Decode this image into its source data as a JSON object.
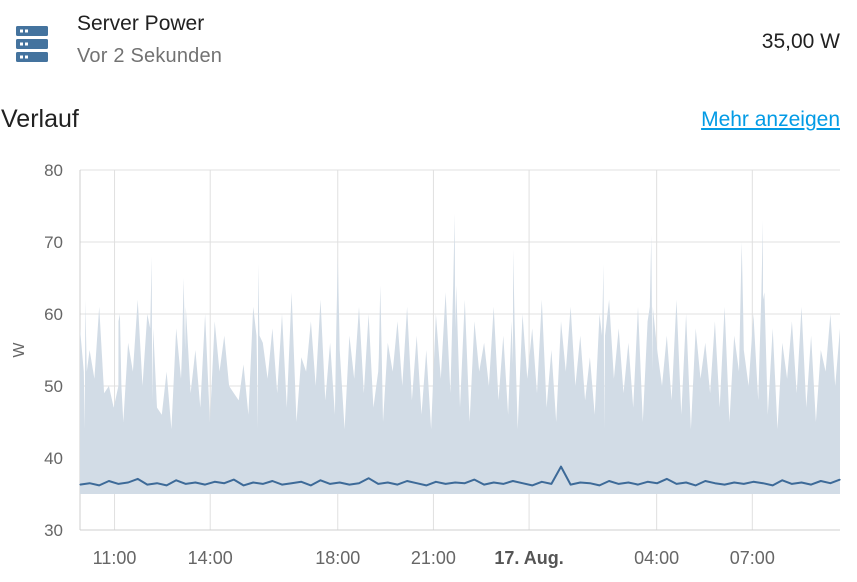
{
  "entity": {
    "icon": "server-icon",
    "name": "Server Power",
    "last_changed": "Vor 2 Sekunden",
    "state": "35,00 W"
  },
  "history": {
    "title": "Verlauf",
    "more_label": "Mehr anzeigen"
  },
  "colors": {
    "accent": "#039be5",
    "series_line": "#3d6a98",
    "series_band": "#d2dce6",
    "icon": "#44739e"
  },
  "chart_data": {
    "type": "line",
    "xlabel": "",
    "ylabel": "W",
    "ylim": [
      30,
      80
    ],
    "yticks": [
      30,
      40,
      50,
      60,
      70,
      80
    ],
    "xlim": [
      "2023-08-16 09:55",
      "2023-08-17 09:45"
    ],
    "xticks": [
      {
        "time": "2023-08-16 11:00",
        "label": "11:00",
        "bold": false
      },
      {
        "time": "2023-08-16 14:00",
        "label": "14:00",
        "bold": false
      },
      {
        "time": "2023-08-16 18:00",
        "label": "18:00",
        "bold": false
      },
      {
        "time": "2023-08-16 21:00",
        "label": "21:00",
        "bold": false
      },
      {
        "time": "2023-08-17 00:00",
        "label": "17. Aug.",
        "bold": true
      },
      {
        "time": "2023-08-17 04:00",
        "label": "04:00",
        "bold": false
      },
      {
        "time": "2023-08-17 07:00",
        "label": "07:00",
        "bold": false
      }
    ],
    "grid": true,
    "band_min": 35,
    "band_max": [
      58,
      55,
      61,
      50,
      59,
      56,
      62,
      60,
      47,
      52,
      58,
      61,
      55,
      60,
      59,
      57,
      49,
      53,
      61,
      56,
      58,
      60,
      63,
      54,
      59,
      62,
      56,
      55,
      57,
      61,
      60,
      52,
      56,
      59,
      61,
      57,
      55,
      60,
      63,
      58,
      62,
      59,
      56,
      61,
      57,
      53,
      60,
      58,
      62,
      55,
      59,
      61,
      57,
      54,
      60,
      62,
      58,
      56,
      61,
      59,
      55,
      57,
      62,
      60,
      58,
      56,
      59,
      61,
      57,
      55,
      60,
      62,
      58,
      56,
      59,
      61,
      57,
      55,
      60,
      58
    ],
    "band_upper_spikes": [
      {
        "time": "2023-08-16 10:05",
        "value": 62
      },
      {
        "time": "2023-08-16 11:10",
        "value": 60
      },
      {
        "time": "2023-08-16 12:10",
        "value": 68
      },
      {
        "time": "2023-08-16 13:10",
        "value": 65
      },
      {
        "time": "2023-08-16 15:30",
        "value": 67
      },
      {
        "time": "2023-08-16 18:00",
        "value": 68
      },
      {
        "time": "2023-08-16 19:20",
        "value": 64
      },
      {
        "time": "2023-08-16 21:40",
        "value": 74
      },
      {
        "time": "2023-08-16 23:30",
        "value": 69
      },
      {
        "time": "2023-08-17 02:20",
        "value": 67
      },
      {
        "time": "2023-08-17 03:50",
        "value": 71
      },
      {
        "time": "2023-08-17 06:40",
        "value": 70
      },
      {
        "time": "2023-08-17 07:20",
        "value": 73
      }
    ],
    "series": [
      {
        "values": [
          36.3,
          36.5,
          36.2,
          36.8,
          36.4,
          36.6,
          37.1,
          36.3,
          36.5,
          36.2,
          36.9,
          36.4,
          36.6,
          36.3,
          36.7,
          36.5,
          37.0,
          36.2,
          36.6,
          36.4,
          36.8,
          36.3,
          36.5,
          36.7,
          36.2,
          36.9,
          36.4,
          36.6,
          36.3,
          36.5,
          37.2,
          36.4,
          36.6,
          36.3,
          36.8,
          36.5,
          36.2,
          36.7,
          36.4,
          36.6,
          36.5,
          37.0,
          36.3,
          36.6,
          36.4,
          36.8,
          36.5,
          36.2,
          36.7,
          36.4,
          38.8,
          36.3,
          36.6,
          36.5,
          36.2,
          36.8,
          36.4,
          36.6,
          36.3,
          36.7,
          36.5,
          37.1,
          36.4,
          36.6,
          36.2,
          36.8,
          36.5,
          36.3,
          36.6,
          36.4,
          36.7,
          36.5,
          36.2,
          36.9,
          36.4,
          36.6,
          36.3,
          36.8,
          36.5,
          37.0
        ]
      }
    ]
  }
}
